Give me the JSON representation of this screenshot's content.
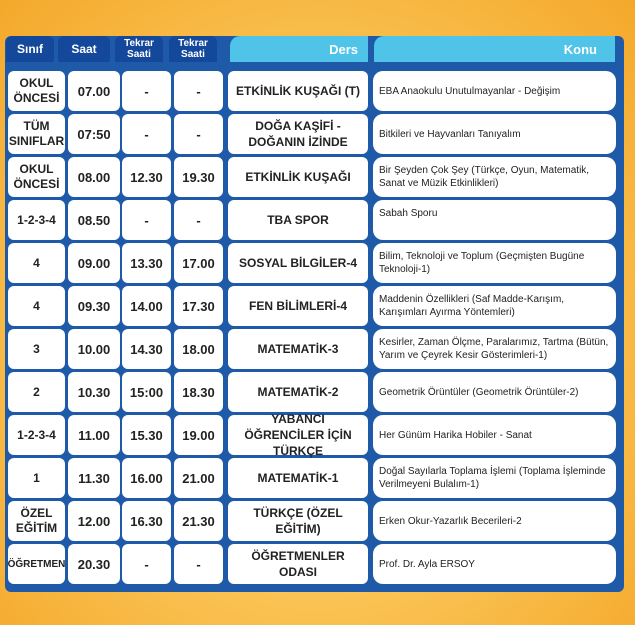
{
  "header": {
    "sinif": "Sınıf",
    "saat": "Saat",
    "tekrar1": "Tekrar Saati",
    "tekrar2": "Tekrar Saati",
    "ders": "Ders",
    "konu": "Konu"
  },
  "rows": [
    {
      "sinif": "OKUL ÖNCESİ",
      "saat": "07.00",
      "t1": "-",
      "t2": "-",
      "ders": "ETKİNLİK KUŞAĞI (T)",
      "konu": "EBA Anaokulu Unutulmayanlar - Değişim"
    },
    {
      "sinif": "TÜM SINIFLAR",
      "saat": "07:50",
      "t1": "-",
      "t2": "-",
      "ders": "DOĞA KAŞİFİ - DOĞANIN İZİNDE",
      "konu": "Bitkileri ve Hayvanları Tanıyalım"
    },
    {
      "sinif": "OKUL ÖNCESİ",
      "saat": "08.00",
      "t1": "12.30",
      "t2": "19.30",
      "ders": "ETKİNLİK KUŞAĞI",
      "konu": "Bir Şeyden Çok Şey (Türkçe, Oyun, Matematik, Sanat ve Müzik Etkinlikleri)"
    },
    {
      "sinif": "1-2-3-4",
      "saat": "08.50",
      "t1": "-",
      "t2": "-",
      "ders": "TBA SPOR",
      "konu": "Sabah Sporu"
    },
    {
      "sinif": "4",
      "saat": "09.00",
      "t1": "13.30",
      "t2": "17.00",
      "ders": "SOSYAL BİLGİLER-4",
      "konu": "Bilim, Teknoloji ve Toplum (Geçmişten Bugüne Teknoloji-1)"
    },
    {
      "sinif": "4",
      "saat": "09.30",
      "t1": "14.00",
      "t2": "17.30",
      "ders": "FEN BİLİMLERİ-4",
      "konu": "Maddenin Özellikleri (Saf Madde-Karışım, Karışımları Ayırma Yöntemleri)"
    },
    {
      "sinif": "3",
      "saat": "10.00",
      "t1": "14.30",
      "t2": "18.00",
      "ders": "MATEMATİK-3",
      "konu": "Kesirler, Zaman Ölçme, Paralarımız, Tartma (Bütün, Yarım ve Çeyrek Kesir Gösterimleri-1)"
    },
    {
      "sinif": "2",
      "saat": "10.30",
      "t1": "15:00",
      "t2": "18.30",
      "ders": "MATEMATİK-2",
      "konu": "Geometrik Örüntüler (Geometrik Örüntüler-2)"
    },
    {
      "sinif": "1-2-3-4",
      "saat": "11.00",
      "t1": "15.30",
      "t2": "19.00",
      "ders": "YABANCI ÖĞRENCİLER İÇİN TÜRKÇE",
      "konu": "Her Günüm Harika Hobiler - Sanat"
    },
    {
      "sinif": "1",
      "saat": "11.30",
      "t1": "16.00",
      "t2": "21.00",
      "ders": "MATEMATİK-1",
      "konu": "Doğal Sayılarla Toplama İşlemi (Toplama İşleminde Verilmeyeni Bulalım-1)"
    },
    {
      "sinif": "ÖZEL EĞİTİM",
      "saat": "12.00",
      "t1": "16.30",
      "t2": "21.30",
      "ders": "TÜRKÇE (ÖZEL EĞİTİM)",
      "konu": "Erken Okur-Yazarlık Becerileri-2"
    },
    {
      "sinif": "ÖĞRETMEN",
      "saat": "20.30",
      "t1": "-",
      "t2": "-",
      "ders": "ÖĞRETMENLER ODASI",
      "konu": "Prof. Dr. Ayla ERSOY"
    }
  ]
}
